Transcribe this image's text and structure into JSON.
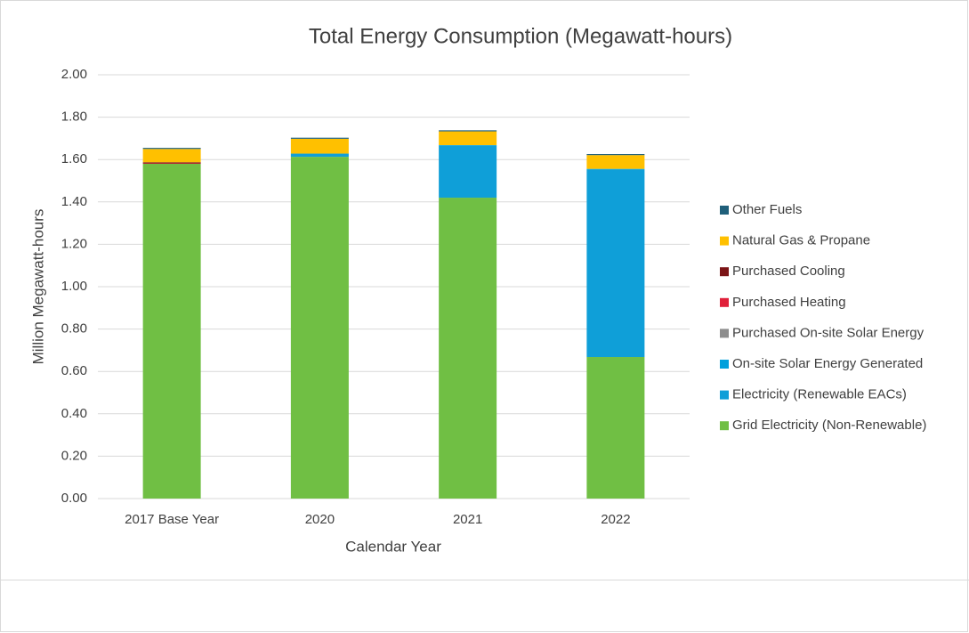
{
  "chart_data": {
    "type": "stacked_bar",
    "title": "Total Energy Consumption (Megawatt-hours)",
    "x_label": "Calendar Year",
    "y_label": "Million Megawatt-hours",
    "categories": [
      "2017 Base Year",
      "2020",
      "2021",
      "2022"
    ],
    "series": [
      {
        "name": "Grid Electricity (Non-Renewable)",
        "color": "#70bf44",
        "values": [
          1.58,
          1.613,
          1.42,
          0.668
        ]
      },
      {
        "name": "Electricity (Renewable EACs)",
        "color": "#0f9fd8",
        "values": [
          0,
          0.015,
          0.245,
          0.885
        ]
      },
      {
        "name": "On-site Solar Energy Generated",
        "color": "#00a0dc",
        "values": [
          0,
          0,
          0.003,
          0.003
        ]
      },
      {
        "name": "Purchased On-site Solar Energy",
        "color": "#8c8c8c",
        "values": [
          0,
          0,
          0,
          0
        ]
      },
      {
        "name": "Purchased Heating",
        "color": "#e0203a",
        "values": [
          0.002,
          0,
          0,
          0
        ]
      },
      {
        "name": "Purchased Cooling",
        "color": "#7b1416",
        "values": [
          0.005,
          0,
          0,
          0
        ]
      },
      {
        "name": "Natural Gas & Propane",
        "color": "#ffc000",
        "values": [
          0.063,
          0.07,
          0.065,
          0.065
        ]
      },
      {
        "name": "Other Fuels",
        "color": "#1f5f7a",
        "values": [
          0.005,
          0.005,
          0.005,
          0.005
        ]
      }
    ],
    "ylim": [
      0,
      2
    ],
    "yticks": [
      {
        "value": 0,
        "label": "0.00"
      },
      {
        "value": 0.2,
        "label": "0.20"
      },
      {
        "value": 0.4,
        "label": "0.40"
      },
      {
        "value": 0.6,
        "label": "0.60"
      },
      {
        "value": 0.8,
        "label": "0.80"
      },
      {
        "value": 1,
        "label": "1.00"
      },
      {
        "value": 1.2,
        "label": "1.20"
      },
      {
        "value": 1.4,
        "label": "1.40"
      },
      {
        "value": 1.6,
        "label": "1.60"
      },
      {
        "value": 1.8,
        "label": "1.80"
      },
      {
        "value": 2,
        "label": "2.00"
      }
    ],
    "grid": true,
    "legend": "right"
  }
}
